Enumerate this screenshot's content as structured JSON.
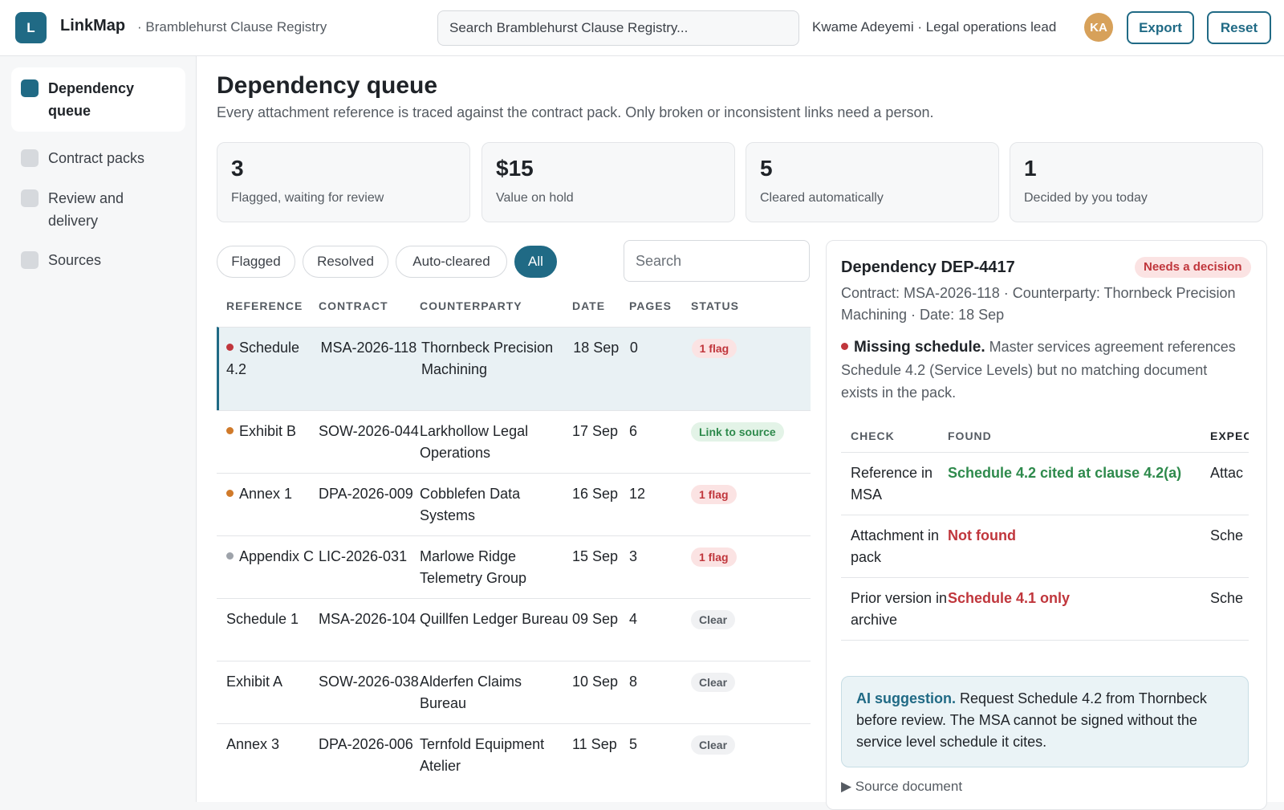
{
  "header": {
    "logo_letter": "L",
    "app_name": "LinkMap",
    "registry": "· Bramblehurst Clause Registry",
    "search_placeholder": "Search Bramblehurst Clause Registry...",
    "user": "Kwame Adeyemi · Legal operations lead",
    "avatar": "KA",
    "export_label": "Export",
    "reset_label": "Reset"
  },
  "sidebar": {
    "items": [
      {
        "label": "Dependency queue",
        "active": true
      },
      {
        "label": "Contract packs",
        "active": false
      },
      {
        "label": "Review and delivery",
        "active": false
      },
      {
        "label": "Sources",
        "active": false
      }
    ]
  },
  "main": {
    "title": "Dependency queue",
    "subtitle": "Every attachment reference is traced against the contract pack. Only broken or inconsistent links need a person.",
    "stats": [
      {
        "value": "3",
        "label": "Flagged, waiting for review"
      },
      {
        "value": "$15",
        "label": "Value on hold"
      },
      {
        "value": "5",
        "label": "Cleared automatically"
      },
      {
        "value": "1",
        "label": "Decided by you today"
      }
    ],
    "filters": [
      {
        "label": "Flagged",
        "active": false
      },
      {
        "label": "Resolved",
        "active": false
      },
      {
        "label": "Auto-cleared",
        "active": false
      },
      {
        "label": "All",
        "active": true
      }
    ],
    "search_placeholder": "Search",
    "columns": [
      "REFERENCE",
      "CONTRACT",
      "COUNTERPARTY",
      "DATE",
      "PAGES",
      "STATUS"
    ],
    "rows": [
      {
        "ref": "Schedule 4.2",
        "contract": "MSA-2026-118",
        "counterparty": "Thornbeck Precision Machining",
        "date": "18 Sep",
        "pages": "0",
        "status": "1 flag",
        "kind": "flag",
        "dot": "#c0363c",
        "selected": true
      },
      {
        "ref": "Exhibit B",
        "contract": "SOW-2026-044",
        "counterparty": "Larkhollow Legal Operations",
        "date": "17 Sep",
        "pages": "6",
        "status": "Link to source",
        "kind": "link",
        "dot": "#d07a2a",
        "selected": false
      },
      {
        "ref": "Annex 1",
        "contract": "DPA-2026-009",
        "counterparty": "Cobblefen Data Systems",
        "date": "16 Sep",
        "pages": "12",
        "status": "1 flag",
        "kind": "flag",
        "dot": "#d07a2a",
        "selected": false
      },
      {
        "ref": "Appendix C",
        "contract": "LIC-2026-031",
        "counterparty": "Marlowe Ridge Telemetry Group",
        "date": "15 Sep",
        "pages": "3",
        "status": "1 flag",
        "kind": "flag",
        "dot": "#9ea3aa",
        "selected": false
      },
      {
        "ref": "Schedule 1",
        "contract": "MSA-2026-104",
        "counterparty": "Quillfen Ledger Bureau",
        "date": "09 Sep",
        "pages": "4",
        "status": "Clear",
        "kind": "clear",
        "dot": "",
        "selected": false
      },
      {
        "ref": "Exhibit A",
        "contract": "SOW-2026-038",
        "counterparty": "Alderfen Claims Bureau",
        "date": "10 Sep",
        "pages": "8",
        "status": "Clear",
        "kind": "clear",
        "dot": "",
        "selected": false
      },
      {
        "ref": "Annex 3",
        "contract": "DPA-2026-006",
        "counterparty": "Ternfold Equipment Atelier",
        "date": "11 Sep",
        "pages": "5",
        "status": "Clear",
        "kind": "clear",
        "dot": "",
        "selected": false
      }
    ]
  },
  "panel": {
    "title": "Dependency DEP-4417",
    "badge": "Needs a decision",
    "meta": "Contract: MSA-2026-118 · Counterparty: Thornbeck Precision Machining · Date: 18 Sep",
    "issue_title": "Missing schedule.",
    "issue_text": "Master services agreement references Schedule 4.2 (Service Levels) but no matching document exists in the pack.",
    "check_columns": [
      "CHECK",
      "FOUND",
      "EXPECTED"
    ],
    "checks": [
      {
        "check": "Reference in MSA",
        "found": "Schedule 4.2 cited at clause 4.2(a)",
        "expected": "Attac",
        "ok": true
      },
      {
        "check": "Attachment in pack",
        "found": "Not found",
        "expected": "Sche",
        "ok": false
      },
      {
        "check": "Prior version in archive",
        "found": "Schedule 4.1 only",
        "expected": "Sche",
        "ok": false
      }
    ],
    "ai_label": "AI suggestion.",
    "ai_text": "Request Schedule 4.2 from Thornbeck before review. The MSA cannot be signed without the service level schedule it cites.",
    "source_toggle": "▶ Source document"
  },
  "colors": {
    "accent": "#206a85",
    "flag": "#c0363c",
    "ok": "#2e8a4c"
  }
}
